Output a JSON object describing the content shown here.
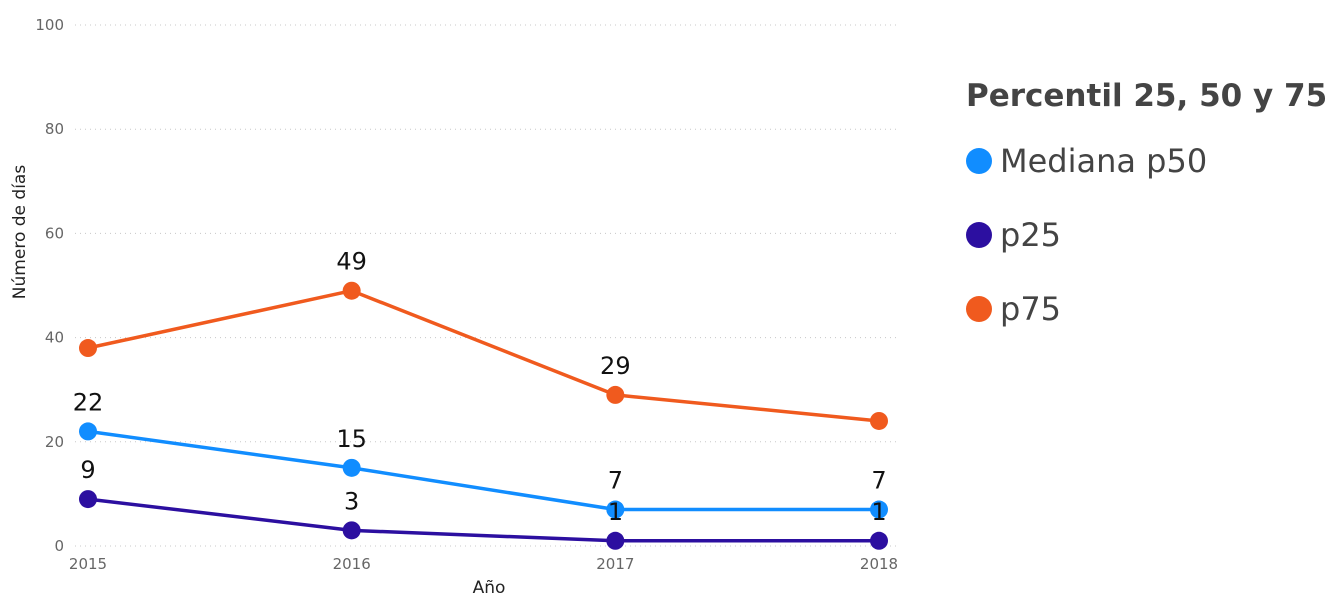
{
  "chart_data": {
    "type": "line",
    "x": [
      "2015",
      "2016",
      "2017",
      "2018"
    ],
    "series": [
      {
        "name": "Mediana p50",
        "color": "#118DFF",
        "values": [
          22,
          15,
          7,
          7
        ],
        "data_labels": [
          "22",
          "15",
          "7",
          "7"
        ]
      },
      {
        "name": "p25",
        "color": "#2C0FA0",
        "values": [
          9,
          3,
          1,
          1
        ],
        "data_labels": [
          "9",
          "3",
          "1",
          "1"
        ]
      },
      {
        "name": "p75",
        "color": "#F05A1E",
        "values": [
          38,
          49,
          29,
          24
        ],
        "data_labels": [
          "",
          "49",
          "29",
          ""
        ]
      }
    ],
    "xlabel": "Año",
    "ylabel": "Número de días",
    "ylim": [
      0,
      100
    ],
    "yticks": [
      "0",
      "20",
      "40",
      "60",
      "80",
      "100"
    ],
    "grid": true,
    "legend": {
      "title": "Percentil 25, 50 y 75",
      "placement": "right"
    }
  }
}
